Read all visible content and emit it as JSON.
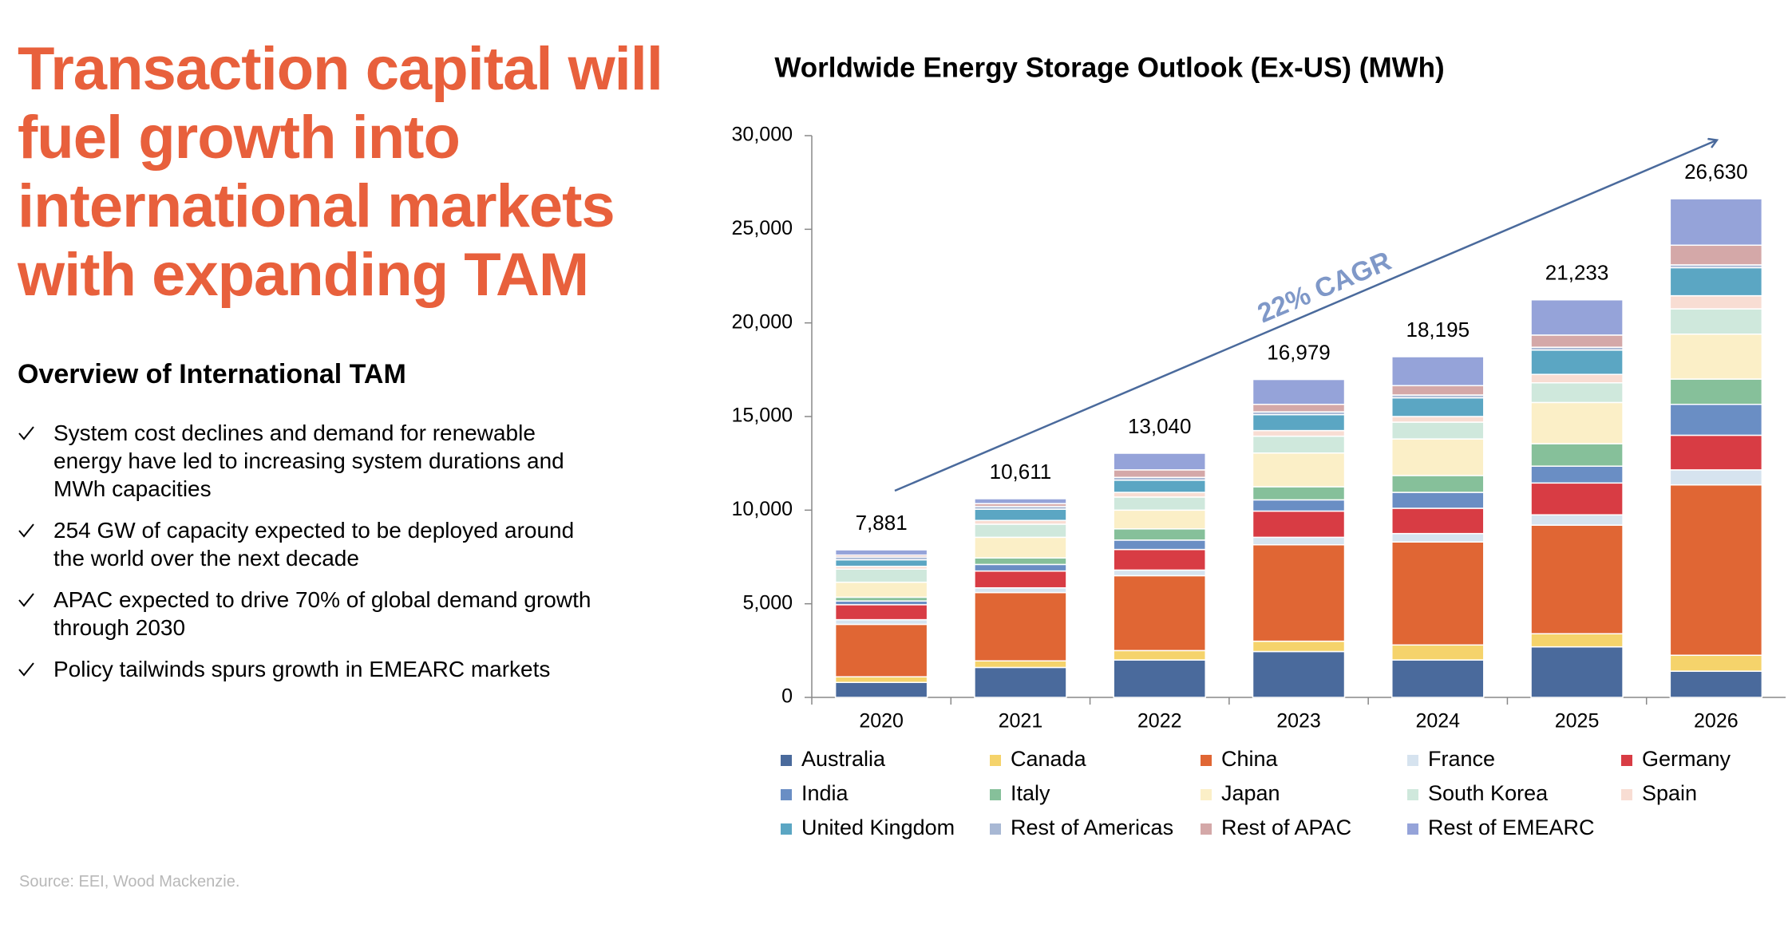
{
  "headline": "Transaction capital will fuel growth into international markets with expanding TAM",
  "overview": {
    "title": "Overview of International TAM",
    "bullets": [
      "System cost declines and demand for renewable energy have led to increasing system durations and MWh capacities",
      "254 GW of capacity expected to be deployed around the world over the next decade",
      "APAC expected to drive 70% of global demand growth through 2030",
      "Policy tailwinds spurs growth in EMEARC markets"
    ]
  },
  "source": "Source: EEI, Wood Mackenzie.",
  "chart_data": {
    "type": "stacked_bar",
    "title": "Worldwide Energy Storage Outlook (Ex-US) (MWh)",
    "annotation": "22% CAGR",
    "categories": [
      "2020",
      "2021",
      "2022",
      "2023",
      "2024",
      "2025",
      "2026"
    ],
    "series": [
      {
        "name": "Australia",
        "color": "#4a6a9c",
        "values": [
          800,
          1600,
          2000,
          2450,
          2000,
          2700,
          1400
        ]
      },
      {
        "name": "Canada",
        "color": "#f5d36b",
        "values": [
          300,
          350,
          500,
          550,
          800,
          700,
          850
        ]
      },
      {
        "name": "China",
        "color": "#e06634",
        "values": [
          2800,
          3650,
          4000,
          5150,
          5500,
          5800,
          9100
        ]
      },
      {
        "name": "France",
        "color": "#d6e3ef",
        "values": [
          250,
          250,
          300,
          400,
          450,
          550,
          800
        ]
      },
      {
        "name": "Germany",
        "color": "#d83c44",
        "values": [
          800,
          900,
          1100,
          1400,
          1350,
          1700,
          1850
        ]
      },
      {
        "name": "India",
        "color": "#6a8ec4",
        "values": [
          200,
          350,
          500,
          600,
          850,
          900,
          1650
        ]
      },
      {
        "name": "Italy",
        "color": "#86c09a",
        "values": [
          200,
          350,
          600,
          700,
          900,
          1200,
          1350
        ]
      },
      {
        "name": "Japan",
        "color": "#fbefc7",
        "values": [
          800,
          1100,
          1000,
          1800,
          1950,
          2200,
          2400
        ]
      },
      {
        "name": "South Korea",
        "color": "#cfe8dc",
        "values": [
          700,
          700,
          700,
          900,
          900,
          1050,
          1350
        ]
      },
      {
        "name": "Spain",
        "color": "#f8ddd3",
        "values": [
          150,
          200,
          250,
          300,
          300,
          450,
          700
        ]
      },
      {
        "name": "United Kingdom",
        "color": "#5ba6c3",
        "values": [
          350,
          600,
          650,
          850,
          1000,
          1300,
          1500
        ]
      },
      {
        "name": "Rest of Americas",
        "color": "#a8b8d4",
        "values": [
          150,
          150,
          150,
          150,
          150,
          150,
          150
        ]
      },
      {
        "name": "Rest of APAC",
        "color": "#d4a8a8",
        "values": [
          100,
          150,
          400,
          400,
          500,
          650,
          1050
        ]
      },
      {
        "name": "Rest of EMEARC",
        "color": "#95a3d9",
        "values": [
          281,
          261,
          890,
          1329,
          1545,
          1883,
          2480
        ]
      }
    ],
    "totals": [
      {
        "value": 7881,
        "label": "7,881"
      },
      {
        "value": 10611,
        "label": "10,611"
      },
      {
        "value": 13040,
        "label": "13,040"
      },
      {
        "value": 16979,
        "label": "16,979"
      },
      {
        "value": 18195,
        "label": "18,195"
      },
      {
        "value": 21233,
        "label": "21,233"
      },
      {
        "value": 26630,
        "label": "26,630"
      }
    ],
    "ylim": [
      0,
      30000
    ],
    "yticks": [
      0,
      {
        "value": 5000,
        "label": "5,000"
      },
      {
        "value": 10000,
        "label": "10,000"
      },
      {
        "value": 15000,
        "label": "15,000"
      },
      {
        "value": 20000,
        "label": "20,000"
      },
      {
        "value": 25000,
        "label": "25,000"
      },
      {
        "value": 30000,
        "label": "30,000"
      }
    ],
    "legend": "bottom"
  }
}
